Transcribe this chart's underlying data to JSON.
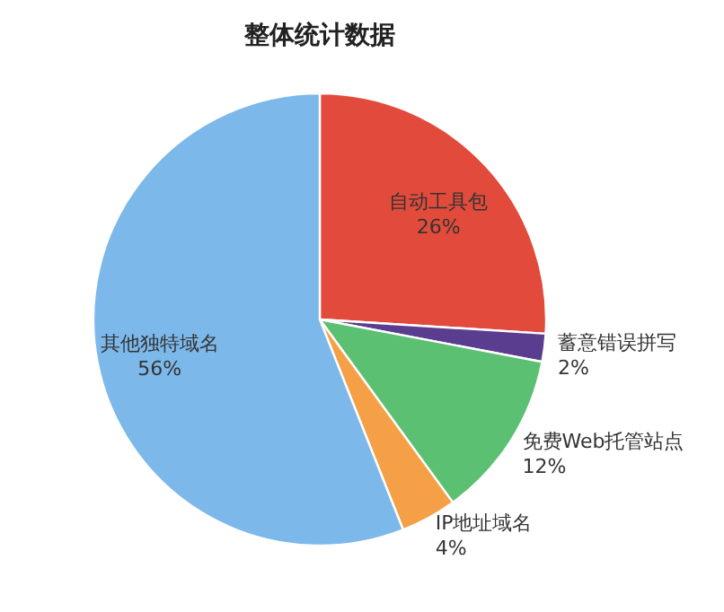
{
  "chart_data": {
    "type": "pie",
    "title": "整体统计数据",
    "categories": [
      "自动工具包",
      "蓄意错误拼写",
      "免费Web托管站点",
      "IP地址域名",
      "其他独特域名"
    ],
    "values": [
      26,
      2,
      12,
      4,
      56
    ],
    "colors": [
      "#e24b3b",
      "#5b3d8f",
      "#5cc073",
      "#f5a046",
      "#7db8ea"
    ],
    "value_labels": [
      "26%",
      "2%",
      "12%",
      "4%",
      "56%"
    ]
  }
}
